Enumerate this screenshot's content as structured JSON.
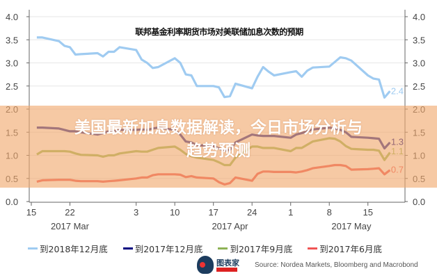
{
  "chart_data": {
    "type": "line",
    "title": "联邦基金利率期货市场对美联储加息次数的预期",
    "ylim": [
      0,
      4.0
    ],
    "yticks": [
      "0.0",
      "0.5",
      "1.0",
      "1.5",
      "2.0",
      "2.5",
      "3.0",
      "3.5",
      "4.0"
    ],
    "grid": true,
    "legend_position": "bottom",
    "xticks": [
      {
        "date": "2017-03-15",
        "label": "15"
      },
      {
        "date": "2017-03-22",
        "label": "22"
      },
      {
        "date": "2017-04-03",
        "label": "3"
      },
      {
        "date": "2017-04-10",
        "label": "10"
      },
      {
        "date": "2017-04-17",
        "label": "17"
      },
      {
        "date": "2017-04-24",
        "label": "24"
      },
      {
        "date": "2017-05-01",
        "label": "1"
      },
      {
        "date": "2017-05-08",
        "label": "8"
      },
      {
        "date": "2017-05-15",
        "label": "15"
      }
    ],
    "month_labels": [
      {
        "date": "2017-03-22",
        "label": "2017 Mar"
      },
      {
        "date": "2017-04-20",
        "label": "2017 Apr"
      },
      {
        "date": "2017-05-12",
        "label": "2017 May"
      }
    ],
    "x": [
      "2017-03-16",
      "2017-03-17",
      "2017-03-20",
      "2017-03-21",
      "2017-03-22",
      "2017-03-23",
      "2017-03-24",
      "2017-03-27",
      "2017-03-28",
      "2017-03-29",
      "2017-03-30",
      "2017-03-31",
      "2017-04-03",
      "2017-04-04",
      "2017-04-05",
      "2017-04-06",
      "2017-04-07",
      "2017-04-10",
      "2017-04-11",
      "2017-04-12",
      "2017-04-13",
      "2017-04-14",
      "2017-04-17",
      "2017-04-18",
      "2017-04-19",
      "2017-04-20",
      "2017-04-21",
      "2017-04-24",
      "2017-04-25",
      "2017-04-26",
      "2017-04-27",
      "2017-04-28",
      "2017-05-01",
      "2017-05-02",
      "2017-05-03",
      "2017-05-04",
      "2017-05-05",
      "2017-05-08",
      "2017-05-09",
      "2017-05-10",
      "2017-05-11",
      "2017-05-12",
      "2017-05-15",
      "2017-05-16",
      "2017-05-17",
      "2017-05-18",
      "2017-05-19"
    ],
    "series": [
      {
        "name": "到2018年12月底",
        "color": "#9fcbf1",
        "end_label": "2.4",
        "values": [
          3.55,
          3.55,
          3.47,
          3.37,
          3.34,
          3.18,
          3.19,
          3.21,
          3.14,
          3.24,
          3.24,
          3.34,
          3.28,
          3.07,
          3.0,
          2.89,
          2.91,
          3.1,
          3.0,
          2.75,
          2.73,
          2.5,
          2.5,
          2.47,
          2.26,
          2.28,
          2.55,
          2.45,
          2.7,
          2.91,
          2.81,
          2.73,
          2.8,
          2.82,
          2.7,
          2.83,
          2.9,
          2.92,
          3.02,
          3.12,
          3.1,
          3.05,
          2.73,
          2.66,
          2.64,
          2.25,
          2.39
        ]
      },
      {
        "name": "到2017年12月底",
        "color": "#000080",
        "end_label": "1.3",
        "values": [
          1.6,
          1.6,
          1.58,
          1.55,
          1.52,
          1.52,
          1.5,
          1.45,
          1.48,
          1.52,
          1.52,
          1.55,
          1.55,
          1.56,
          1.55,
          1.58,
          1.6,
          1.55,
          1.45,
          1.3,
          1.28,
          1.22,
          1.2,
          1.15,
          1.1,
          1.12,
          1.28,
          1.45,
          1.43,
          1.42,
          1.42,
          1.42,
          1.38,
          1.45,
          1.48,
          1.52,
          1.56,
          1.6,
          1.58,
          1.55,
          1.5,
          1.4,
          1.38,
          1.37,
          1.36,
          1.15,
          1.28
        ]
      },
      {
        "name": "到2017年9月底",
        "color": "#9bbb59",
        "end_label": "1.1",
        "values": [
          1.02,
          1.09,
          1.09,
          1.09,
          1.08,
          1.04,
          1.01,
          1.0,
          0.97,
          1.0,
          1.0,
          1.04,
          1.09,
          1.08,
          1.08,
          1.12,
          1.16,
          1.19,
          1.12,
          1.03,
          0.98,
          0.95,
          0.9,
          0.85,
          0.79,
          0.79,
          0.95,
          1.19,
          1.19,
          1.16,
          1.16,
          1.16,
          1.09,
          1.16,
          1.16,
          1.23,
          1.3,
          1.37,
          1.36,
          1.3,
          1.2,
          1.14,
          1.12,
          1.12,
          1.1,
          0.9,
          1.06
        ]
      },
      {
        "name": "到2017年6月底",
        "color": "#f05454",
        "end_label": "0.7",
        "values": [
          0.43,
          0.46,
          0.47,
          0.47,
          0.47,
          0.45,
          0.44,
          0.44,
          0.43,
          0.44,
          0.45,
          0.46,
          0.5,
          0.52,
          0.52,
          0.57,
          0.59,
          0.59,
          0.58,
          0.53,
          0.55,
          0.52,
          0.5,
          0.42,
          0.37,
          0.4,
          0.52,
          0.45,
          0.6,
          0.65,
          0.65,
          0.64,
          0.64,
          0.63,
          0.65,
          0.68,
          0.72,
          0.77,
          0.79,
          0.79,
          0.77,
          0.69,
          0.7,
          0.71,
          0.72,
          0.59,
          0.68
        ]
      }
    ]
  },
  "banner": {
    "line1": "美国最新加息数据解读，今日市场分析与",
    "line2": "趋势预测"
  },
  "logo": {
    "text": "图表家"
  },
  "source": "Source: Nordea Markets, Bloomberg and Macrobond"
}
